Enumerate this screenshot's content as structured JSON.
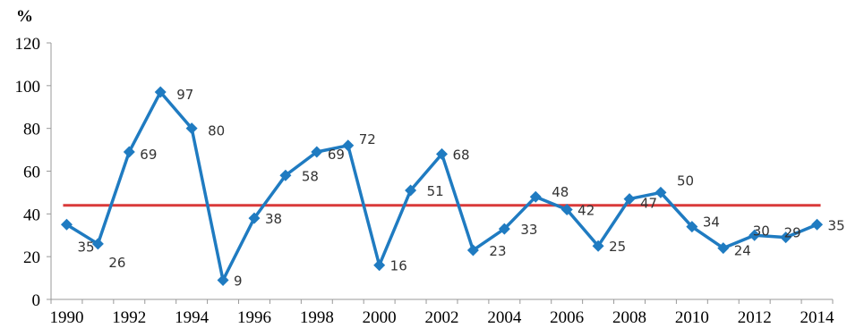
{
  "chart_data": {
    "type": "line",
    "title": "",
    "xlabel": "",
    "ylabel": "%",
    "x": [
      1990,
      1991,
      1992,
      1993,
      1994,
      1995,
      1996,
      1997,
      1998,
      1999,
      2000,
      2001,
      2002,
      2003,
      2004,
      2005,
      2006,
      2007,
      2008,
      2009,
      2010,
      2011,
      2012,
      2013,
      2014
    ],
    "series": [
      {
        "values": [
          35,
          26,
          69,
          97,
          80,
          9,
          38,
          58,
          69,
          72,
          16,
          51,
          68,
          23,
          33,
          48,
          42,
          25,
          47,
          50,
          34,
          24,
          30,
          29,
          35
        ],
        "color": "#1f7bc1",
        "marker": "diamond",
        "data_labels": [
          "35",
          "26",
          "69",
          "97",
          "80",
          "9",
          "38",
          "58",
          "69",
          "72",
          "16",
          "51",
          "68",
          "23",
          "33",
          "48",
          "42",
          "25",
          "47",
          "50",
          "34",
          "24",
          "30",
          "29",
          "35"
        ]
      }
    ],
    "reference_line": {
      "value": 44,
      "color": "#d93a3a"
    },
    "xticks": [
      "1990",
      "1992",
      "1994",
      "1996",
      "1998",
      "2000",
      "2002",
      "2004",
      "2006",
      "2008",
      "2010",
      "2012",
      "2014"
    ],
    "yticks": [
      "0",
      "20",
      "40",
      "60",
      "80",
      "100",
      "120"
    ],
    "ylim": [
      0,
      120
    ],
    "xlim": [
      1990,
      2014
    ],
    "grid": false
  }
}
